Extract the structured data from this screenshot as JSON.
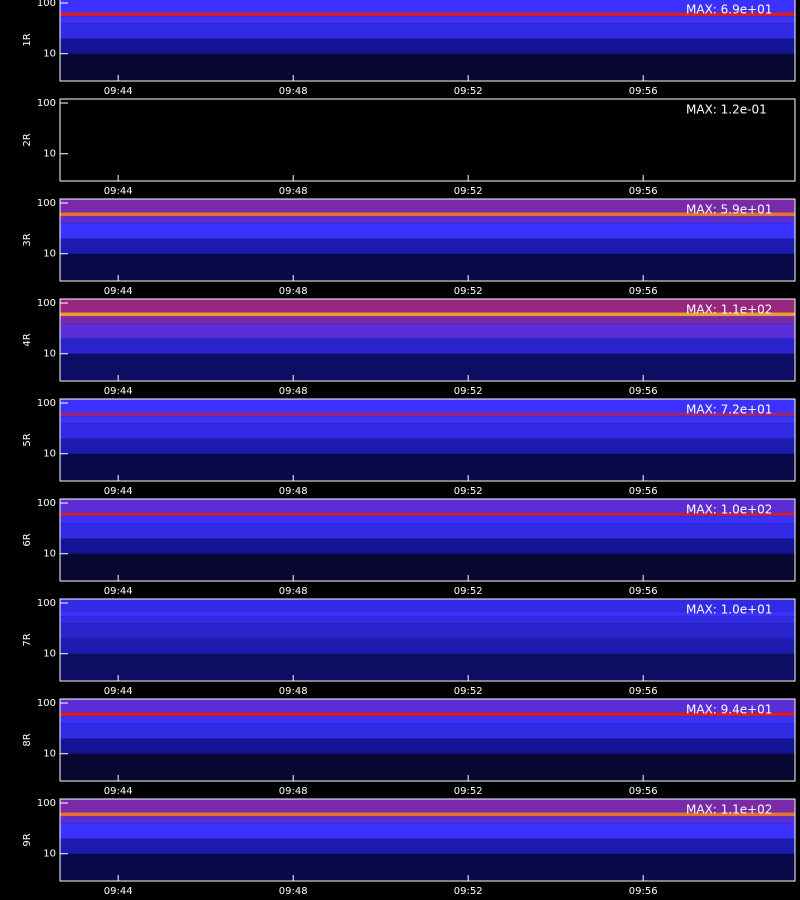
{
  "chart_data": [
    {
      "type": "heatmap",
      "ylabel": "1R",
      "annotation": "MAX: 6.9e+01",
      "log_y": true,
      "xlim": [
        582.67,
        599.47
      ],
      "ylim": [
        2.9,
        120
      ],
      "yticks": [
        10,
        100
      ],
      "xticks": [
        {
          "value": 584,
          "label": "09:44"
        },
        {
          "value": 588,
          "label": "09:48"
        },
        {
          "value": 592,
          "label": "09:52"
        },
        {
          "value": 596,
          "label": "09:56"
        }
      ],
      "y_edges": [
        3,
        10,
        20,
        40,
        55,
        65,
        120
      ],
      "values": [
        0.1,
        0.3,
        0.45,
        0.5,
        0.75,
        0.5
      ]
    },
    {
      "type": "heatmap",
      "ylabel": "2R",
      "annotation": "MAX: 1.2e-01",
      "log_y": true,
      "xlim": [
        582.67,
        599.47
      ],
      "ylim": [
        2.9,
        120
      ],
      "yticks": [
        10,
        100
      ],
      "xticks": [
        {
          "value": 584,
          "label": "09:44"
        },
        {
          "value": 588,
          "label": "09:48"
        },
        {
          "value": 592,
          "label": "09:52"
        },
        {
          "value": 596,
          "label": "09:56"
        }
      ],
      "y_edges": [
        3,
        10,
        20,
        40,
        55,
        65,
        120
      ],
      "values": [
        0,
        0,
        0,
        0,
        0,
        0
      ]
    },
    {
      "type": "heatmap",
      "ylabel": "3R",
      "annotation": "MAX: 5.9e+01",
      "log_y": true,
      "xlim": [
        582.67,
        599.47
      ],
      "ylim": [
        2.9,
        120
      ],
      "yticks": [
        10,
        100
      ],
      "xticks": [
        {
          "value": 584,
          "label": "09:44"
        },
        {
          "value": 588,
          "label": "09:48"
        },
        {
          "value": 592,
          "label": "09:52"
        },
        {
          "value": 596,
          "label": "09:56"
        }
      ],
      "y_edges": [
        3,
        10,
        20,
        40,
        55,
        65,
        120
      ],
      "values": [
        0.15,
        0.35,
        0.5,
        0.55,
        0.85,
        0.6
      ]
    },
    {
      "type": "heatmap",
      "ylabel": "4R",
      "annotation": "MAX: 1.1e+02",
      "log_y": true,
      "xlim": [
        582.67,
        599.47
      ],
      "ylim": [
        2.9,
        120
      ],
      "yticks": [
        10,
        100
      ],
      "xticks": [
        {
          "value": 584,
          "label": "09:44"
        },
        {
          "value": 588,
          "label": "09:48"
        },
        {
          "value": 592,
          "label": "09:52"
        },
        {
          "value": 596,
          "label": "09:56"
        }
      ],
      "y_edges": [
        3,
        10,
        20,
        40,
        55,
        65,
        120
      ],
      "values": [
        0.2,
        0.4,
        0.55,
        0.6,
        0.9,
        0.65
      ]
    },
    {
      "type": "heatmap",
      "ylabel": "5R",
      "annotation": "MAX: 7.2e+01",
      "log_y": true,
      "xlim": [
        582.67,
        599.47
      ],
      "ylim": [
        2.9,
        120
      ],
      "yticks": [
        10,
        100
      ],
      "xticks": [
        {
          "value": 584,
          "label": "09:44"
        },
        {
          "value": 588,
          "label": "09:48"
        },
        {
          "value": 592,
          "label": "09:52"
        },
        {
          "value": 596,
          "label": "09:56"
        }
      ],
      "y_edges": [
        3,
        10,
        20,
        40,
        55,
        65,
        120
      ],
      "values": [
        0.15,
        0.35,
        0.45,
        0.5,
        0.65,
        0.5
      ]
    },
    {
      "type": "heatmap",
      "ylabel": "6R",
      "annotation": "MAX: 1.0e+02",
      "log_y": true,
      "xlim": [
        582.67,
        599.47
      ],
      "ylim": [
        2.9,
        120
      ],
      "yticks": [
        10,
        100
      ],
      "xticks": [
        {
          "value": 584,
          "label": "09:44"
        },
        {
          "value": 588,
          "label": "09:48"
        },
        {
          "value": 592,
          "label": "09:52"
        },
        {
          "value": 596,
          "label": "09:56"
        }
      ],
      "y_edges": [
        3,
        10,
        20,
        40,
        55,
        65,
        120
      ],
      "values": [
        0.1,
        0.3,
        0.45,
        0.5,
        0.7,
        0.55
      ]
    },
    {
      "type": "heatmap",
      "ylabel": "7R",
      "annotation": "MAX: 1.0e+01",
      "log_y": true,
      "xlim": [
        582.67,
        599.47
      ],
      "ylim": [
        2.9,
        120
      ],
      "yticks": [
        10,
        100
      ],
      "xticks": [
        {
          "value": 584,
          "label": "09:44"
        },
        {
          "value": 588,
          "label": "09:48"
        },
        {
          "value": 592,
          "label": "09:52"
        },
        {
          "value": 596,
          "label": "09:56"
        }
      ],
      "y_edges": [
        3,
        10,
        20,
        40,
        55,
        65,
        120
      ],
      "values": [
        0.2,
        0.35,
        0.4,
        0.45,
        0.5,
        0.45
      ]
    },
    {
      "type": "heatmap",
      "ylabel": "8R",
      "annotation": "MAX: 9.4e+01",
      "log_y": true,
      "xlim": [
        582.67,
        599.47
      ],
      "ylim": [
        2.9,
        120
      ],
      "yticks": [
        10,
        100
      ],
      "xticks": [
        {
          "value": 584,
          "label": "09:44"
        },
        {
          "value": 588,
          "label": "09:48"
        },
        {
          "value": 592,
          "label": "09:52"
        },
        {
          "value": 596,
          "label": "09:56"
        }
      ],
      "y_edges": [
        3,
        10,
        20,
        40,
        55,
        65,
        120
      ],
      "values": [
        0.1,
        0.3,
        0.45,
        0.5,
        0.75,
        0.55
      ]
    },
    {
      "type": "heatmap",
      "ylabel": "9R",
      "annotation": "MAX: 1.1e+02",
      "log_y": true,
      "xlim": [
        582.67,
        599.47
      ],
      "ylim": [
        2.9,
        120
      ],
      "yticks": [
        10,
        100
      ],
      "xticks": [
        {
          "value": 584,
          "label": "09:44"
        },
        {
          "value": 588,
          "label": "09:48"
        },
        {
          "value": 592,
          "label": "09:52"
        },
        {
          "value": 596,
          "label": "09:56"
        }
      ],
      "y_edges": [
        3,
        10,
        20,
        40,
        55,
        65,
        120
      ],
      "values": [
        0.15,
        0.35,
        0.5,
        0.55,
        0.85,
        0.6
      ]
    }
  ]
}
